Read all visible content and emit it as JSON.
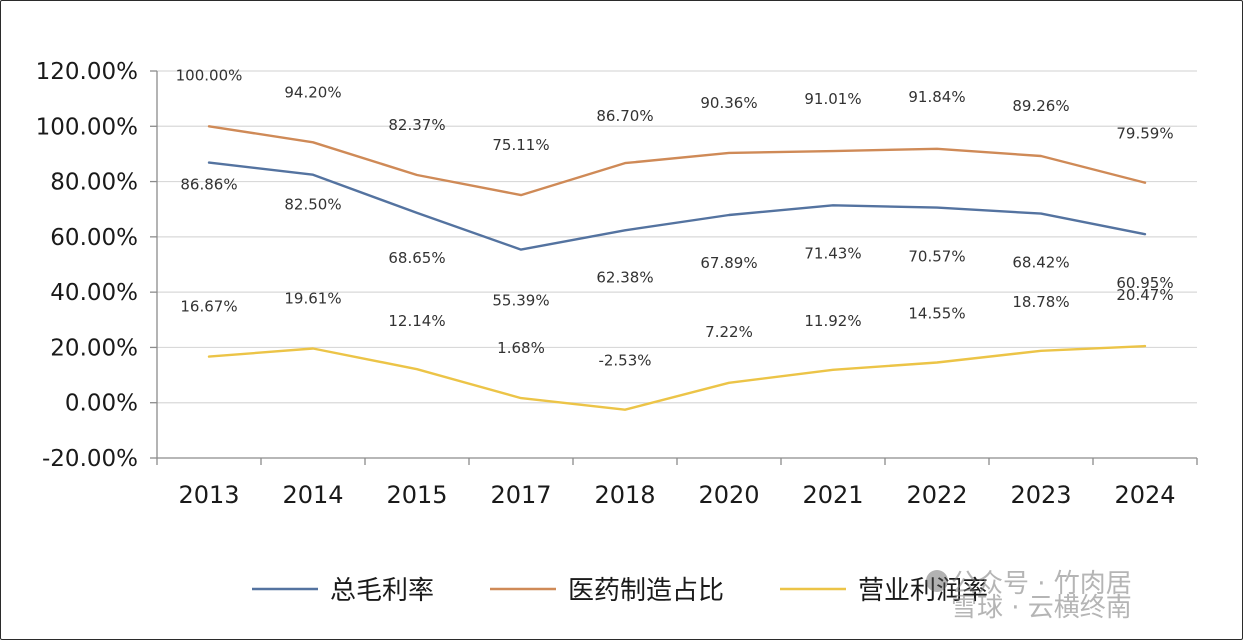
{
  "chart_data": {
    "type": "line",
    "title": "",
    "xlabel": "",
    "ylabel": "",
    "categories": [
      "2013",
      "2014",
      "2015",
      "2017",
      "2018",
      "2020",
      "2021",
      "2022",
      "2023",
      "2024"
    ],
    "ylim": [
      -20,
      120
    ],
    "y_ticks": [
      "120.00%",
      "100.00%",
      "80.00%",
      "60.00%",
      "40.00%",
      "20.00%",
      "0.00%",
      "-20.00%"
    ],
    "grid": true,
    "legend_position": "bottom",
    "series": [
      {
        "name": "总毛利率",
        "color": "#5473a0",
        "values": [
          86.86,
          82.5,
          68.65,
          55.39,
          62.38,
          67.89,
          71.43,
          70.57,
          68.42,
          60.95
        ],
        "labels": [
          "86.86%",
          "82.50%",
          "68.65%",
          "55.39%",
          "62.38%",
          "67.89%",
          "71.43%",
          "70.57%",
          "68.42%",
          "60.95%"
        ]
      },
      {
        "name": "医药制造占比",
        "color": "#cf8a57",
        "values": [
          100.0,
          94.2,
          82.37,
          75.11,
          86.7,
          90.36,
          91.01,
          91.84,
          89.26,
          79.59
        ],
        "labels": [
          "100.00%",
          "94.20%",
          "82.37%",
          "75.11%",
          "86.70%",
          "90.36%",
          "91.01%",
          "91.84%",
          "89.26%",
          "79.59%"
        ]
      },
      {
        "name": "营业利润率",
        "color": "#ecc447",
        "values": [
          16.67,
          19.61,
          12.14,
          1.68,
          -2.53,
          7.22,
          11.92,
          14.55,
          18.78,
          20.47
        ],
        "labels": [
          "16.67%",
          "19.61%",
          "12.14%",
          "1.68%",
          "-2.53%",
          "7.22%",
          "11.92%",
          "14.55%",
          "18.78%",
          "20.47%"
        ]
      }
    ]
  },
  "watermark": {
    "text": "雪球 · 云横终南",
    "overlay_text": "公众号 · 竹肉居"
  }
}
